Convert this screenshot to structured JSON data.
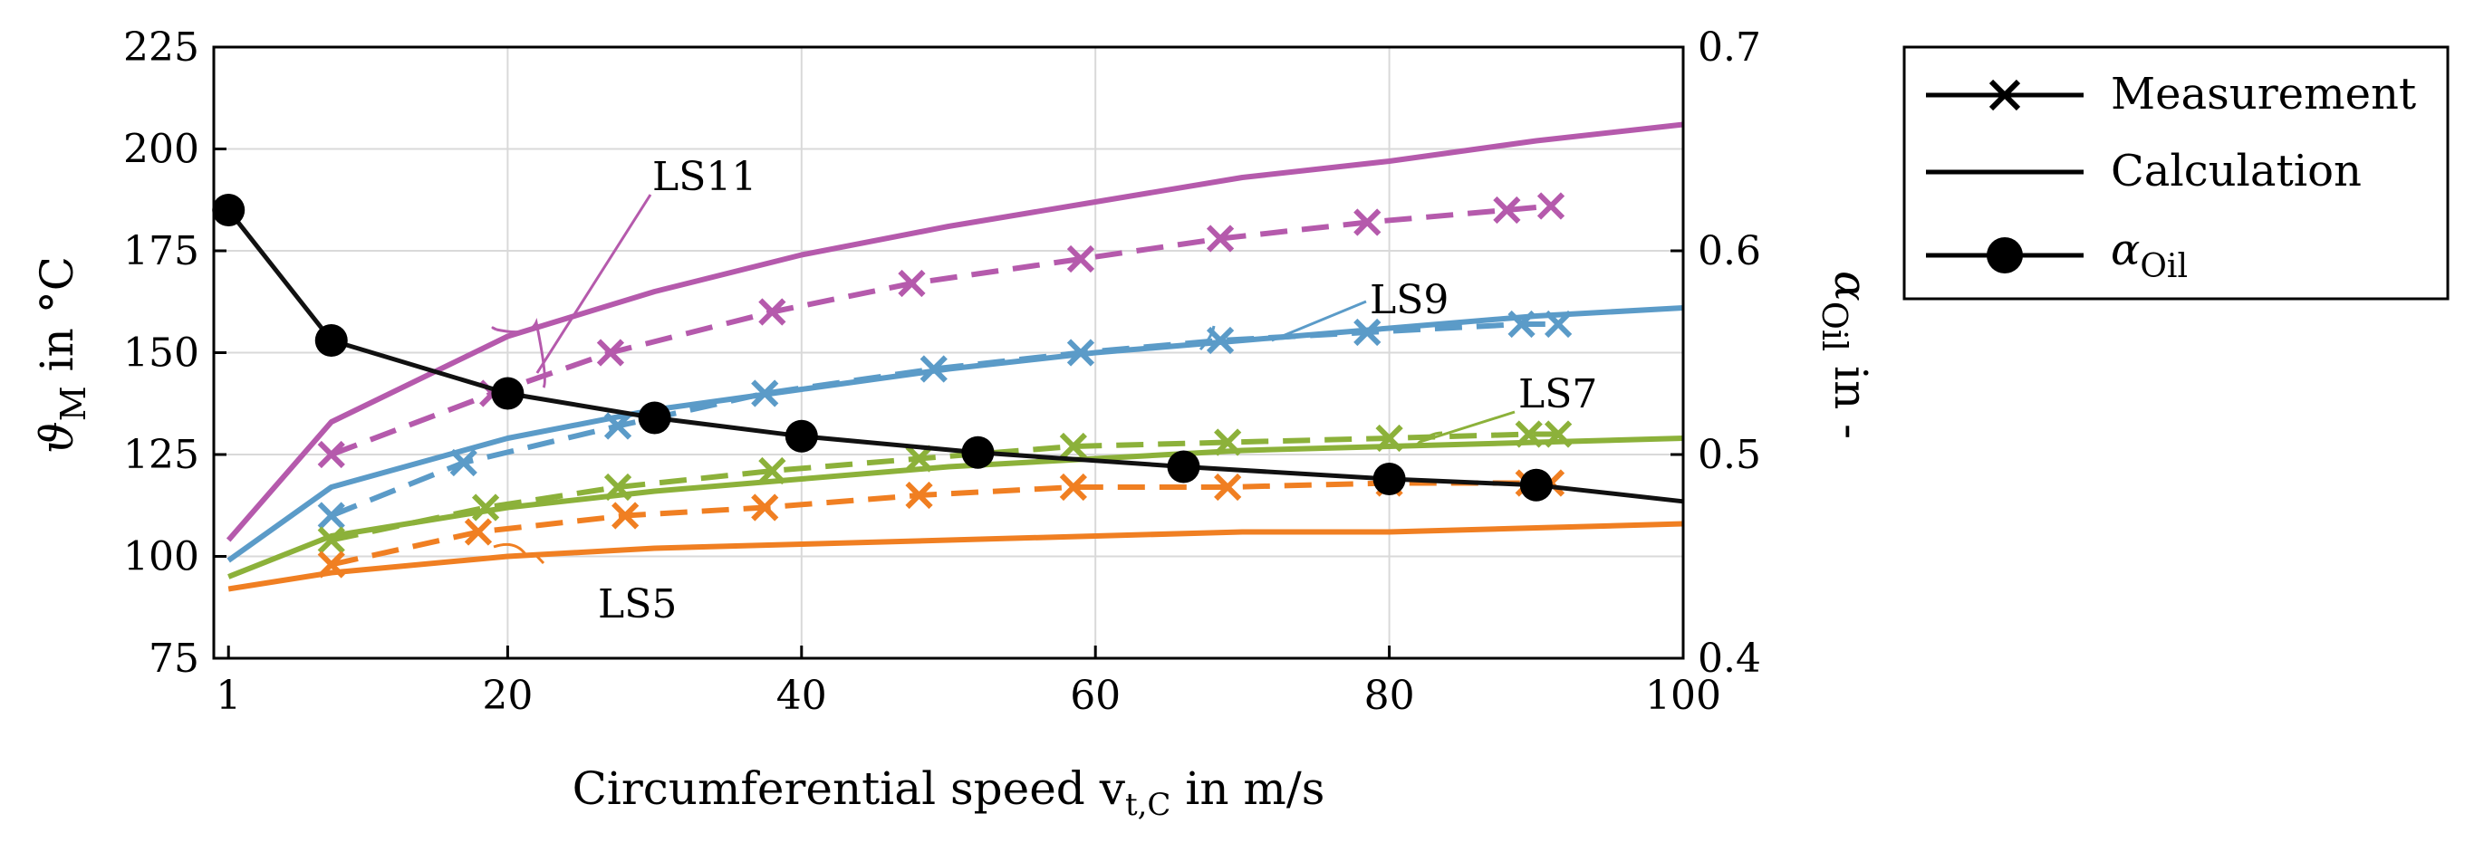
{
  "chart_data": {
    "type": "line",
    "xlabel": "Circumferential speed v",
    "xlabel_sub": "t,C",
    "xlabel_suffix": " in m/s",
    "ylabel": "ϑ",
    "ylabel_sub": "M",
    "ylabel_suffix": " in °C",
    "y2label": "α",
    "y2label_sub": "Oil",
    "y2label_suffix": " in -",
    "xlim": [
      0,
      100
    ],
    "ylim": [
      75,
      225
    ],
    "y2lim": [
      0.4,
      0.7
    ],
    "xticks": [
      1,
      20,
      40,
      60,
      80,
      100
    ],
    "yticks": [
      75,
      100,
      125,
      150,
      175,
      200,
      225
    ],
    "y2ticks": [
      0.4,
      0.5,
      0.6,
      0.7
    ],
    "grid": true,
    "legend": {
      "position": "right",
      "entries": [
        {
          "label": "Measurement",
          "style": "line-cross"
        },
        {
          "label": "Calculation",
          "style": "line"
        },
        {
          "label": "α",
          "label_sub": "Oil",
          "style": "line-dot"
        }
      ]
    },
    "series": [
      {
        "name": "LS11",
        "color": "#b55aac",
        "type": "calculation",
        "x": [
          1,
          8,
          20,
          30,
          40,
          50,
          60,
          70,
          80,
          90,
          100
        ],
        "y": [
          104,
          133,
          154,
          165,
          174,
          181,
          187,
          193,
          197,
          202,
          206
        ]
      },
      {
        "name": "LS11",
        "color": "#b55aac",
        "type": "measurement",
        "x": [
          8,
          19,
          27,
          38,
          47.5,
          59,
          68.5,
          78.5,
          88,
          91
        ],
        "y": [
          125,
          140,
          150,
          160,
          167,
          173,
          178,
          182,
          185,
          186
        ]
      },
      {
        "name": "LS9",
        "color": "#5b9bc8",
        "type": "calculation",
        "x": [
          1,
          8,
          20,
          30,
          40,
          50,
          60,
          70,
          80,
          90,
          100
        ],
        "y": [
          99,
          117,
          129,
          136,
          141,
          146,
          150,
          153,
          156,
          159,
          161
        ]
      },
      {
        "name": "LS9",
        "color": "#5b9bc8",
        "type": "measurement",
        "x": [
          8,
          17,
          27.5,
          37.5,
          49,
          59,
          68.5,
          78.5,
          89,
          91.5
        ],
        "y": [
          110,
          123,
          132,
          140,
          146,
          150,
          153,
          155,
          157,
          157
        ]
      },
      {
        "name": "LS7",
        "color": "#8cb13a",
        "type": "calculation",
        "x": [
          1,
          8,
          20,
          30,
          40,
          50,
          60,
          70,
          80,
          90,
          100
        ],
        "y": [
          95,
          105,
          112,
          116,
          119,
          122,
          124,
          126,
          127,
          128,
          129
        ]
      },
      {
        "name": "LS7",
        "color": "#8cb13a",
        "type": "measurement",
        "x": [
          8,
          18.5,
          27.5,
          38,
          48,
          58.5,
          69,
          80,
          89.5,
          91.5
        ],
        "y": [
          104,
          112,
          117,
          121,
          124,
          127,
          128,
          129,
          130,
          130
        ]
      },
      {
        "name": "LS5",
        "color": "#f07f22",
        "type": "calculation",
        "x": [
          1,
          8,
          20,
          30,
          40,
          50,
          60,
          70,
          80,
          90,
          100
        ],
        "y": [
          92,
          96,
          100,
          102,
          103,
          104,
          105,
          106,
          106,
          107,
          108
        ]
      },
      {
        "name": "LS5",
        "color": "#f07f22",
        "type": "measurement",
        "x": [
          8,
          18,
          28,
          37.5,
          48,
          58.5,
          69,
          80,
          89.5,
          91
        ],
        "y": [
          98,
          106,
          110,
          112,
          115,
          117,
          117,
          118,
          118,
          118
        ]
      },
      {
        "name": "α_Oil",
        "color": "#111111",
        "type": "alpha",
        "x": [
          1,
          8,
          20,
          30,
          40,
          52,
          66,
          80,
          90,
          100
        ],
        "y": [
          0.62,
          0.556,
          0.53,
          0.518,
          0.509,
          0.501,
          0.494,
          0.488,
          0.485,
          0.477
        ]
      }
    ],
    "annotations": [
      {
        "label": "LS11",
        "target": [
          22,
          145
        ]
      },
      {
        "label": "LS9",
        "target": [
          72,
          153
        ]
      },
      {
        "label": "LS7",
        "target": [
          82,
          128
        ]
      },
      {
        "label": "LS5",
        "target": [
          22,
          100
        ]
      }
    ]
  }
}
